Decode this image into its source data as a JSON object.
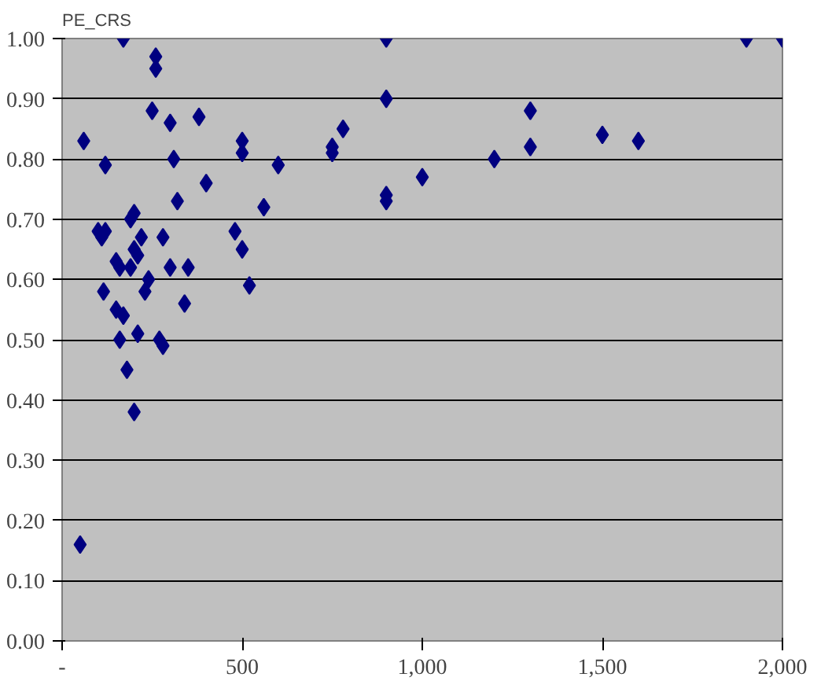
{
  "chart_data": {
    "type": "scatter",
    "title": "PE_CRS",
    "marker": "diamond",
    "grid": "y",
    "x": [
      50,
      60,
      120,
      100,
      110,
      120,
      115,
      150,
      160,
      160,
      170,
      150,
      180,
      170,
      190,
      200,
      210,
      200,
      200,
      190,
      210,
      220,
      230,
      240,
      250,
      260,
      260,
      270,
      280,
      280,
      300,
      300,
      310,
      320,
      340,
      350,
      380,
      400,
      480,
      500,
      500,
      500,
      520,
      560,
      600,
      750,
      750,
      780,
      900,
      900,
      900,
      900,
      1000,
      1200,
      1300,
      1300,
      1500,
      1600,
      1900,
      2000
    ],
    "series": [
      {
        "color": "#000080",
        "values": [
          0.16,
          0.83,
          0.79,
          0.68,
          0.67,
          0.68,
          0.58,
          0.63,
          0.62,
          0.5,
          0.54,
          0.55,
          0.45,
          1.0,
          0.7,
          0.71,
          0.51,
          0.38,
          0.65,
          0.62,
          0.64,
          0.67,
          0.58,
          0.6,
          0.88,
          0.97,
          0.95,
          0.5,
          0.49,
          0.67,
          0.86,
          0.62,
          0.8,
          0.73,
          0.56,
          0.62,
          0.87,
          0.76,
          0.68,
          0.83,
          0.81,
          0.65,
          0.59,
          0.72,
          0.79,
          0.82,
          0.81,
          0.85,
          1.0,
          0.9,
          0.74,
          0.73,
          0.77,
          0.8,
          0.88,
          0.82,
          0.84,
          0.83,
          1.0,
          1.0
        ]
      }
    ],
    "xlim": [
      0,
      2000
    ],
    "xticks": [
      {
        "value": 0,
        "label": "-"
      },
      500,
      {
        "value": 1000,
        "label": "1,000"
      },
      {
        "value": 1500,
        "label": "1,500"
      },
      {
        "value": 2000,
        "label": "2,000"
      }
    ],
    "ylim": [
      0,
      1
    ],
    "yticks": [
      {
        "value": 0,
        "label": "0.00"
      },
      {
        "value": 0.1,
        "label": "0.10"
      },
      {
        "value": 0.2,
        "label": "0.20"
      },
      {
        "value": 0.3,
        "label": "0.30"
      },
      {
        "value": 0.4,
        "label": "0.40"
      },
      {
        "value": 0.5,
        "label": "0.50"
      },
      {
        "value": 0.6,
        "label": "0.60"
      },
      {
        "value": 0.7,
        "label": "0.70"
      },
      {
        "value": 0.8,
        "label": "0.80"
      },
      {
        "value": 0.9,
        "label": "0.90"
      },
      {
        "value": 1,
        "label": "1.00"
      }
    ]
  }
}
